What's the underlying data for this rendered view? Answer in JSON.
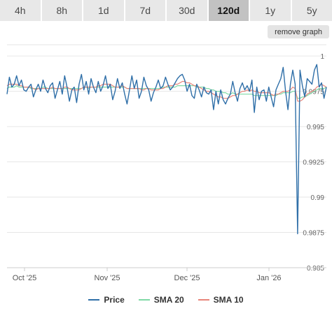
{
  "timeframes": [
    {
      "label": "4h",
      "active": false
    },
    {
      "label": "8h",
      "active": false
    },
    {
      "label": "1d",
      "active": false
    },
    {
      "label": "7d",
      "active": false
    },
    {
      "label": "30d",
      "active": false
    },
    {
      "label": "120d",
      "active": true
    },
    {
      "label": "1y",
      "active": false
    },
    {
      "label": "5y",
      "active": false
    }
  ],
  "remove_graph_label": "remove graph",
  "colors": {
    "price": "#2f6fa8",
    "sma20": "#7fd9a6",
    "sma10": "#e8857a"
  },
  "chart_data": {
    "type": "line",
    "x_ticks": [
      "Oct '25",
      "Nov '25",
      "Dec '25",
      "Jan '26"
    ],
    "y_ticks": [
      "0.985",
      "0.9875",
      "0.99",
      "0.9925",
      "0.995",
      "0.9975",
      "1"
    ],
    "ylim": [
      0.985,
      1.0008
    ],
    "grid": true,
    "legend_position": "bottom",
    "series": [
      {
        "name": "Price",
        "color": "#2f6fa8",
        "values": [
          0.9973,
          0.9985,
          0.9978,
          0.998,
          0.9986,
          0.9979,
          0.9983,
          0.9976,
          0.9975,
          0.9978,
          0.998,
          0.9971,
          0.9976,
          0.998,
          0.9975,
          0.9983,
          0.9977,
          0.9974,
          0.9979,
          0.9981,
          0.997,
          0.9976,
          0.9982,
          0.9973,
          0.9986,
          0.9978,
          0.9968,
          0.9976,
          0.9978,
          0.9967,
          0.998,
          0.9987,
          0.9976,
          0.9982,
          0.9973,
          0.9984,
          0.9978,
          0.9974,
          0.9982,
          0.9975,
          0.9979,
          0.9986,
          0.9977,
          0.998,
          0.9969,
          0.9975,
          0.9984,
          0.9977,
          0.9981,
          0.9973,
          0.9966,
          0.9976,
          0.9986,
          0.9977,
          0.9983,
          0.997,
          0.9975,
          0.9985,
          0.9979,
          0.9976,
          0.9968,
          0.9974,
          0.9978,
          0.9983,
          0.9977,
          0.9979,
          0.9985,
          0.998,
          0.9976,
          0.9978,
          0.9981,
          0.9984,
          0.9986,
          0.9987,
          0.9983,
          0.9975,
          0.998,
          0.9972,
          0.997,
          0.998,
          0.9976,
          0.9971,
          0.9978,
          0.9974,
          0.9973,
          0.9976,
          0.9962,
          0.9975,
          0.9966,
          0.9976,
          0.9969,
          0.9966,
          0.997,
          0.9973,
          0.9982,
          0.9974,
          0.9968,
          0.9977,
          0.9981,
          0.9976,
          0.9979,
          0.9975,
          0.9983,
          0.996,
          0.9978,
          0.9969,
          0.9975,
          0.9976,
          0.9968,
          0.9978,
          0.9971,
          0.9964,
          0.9976,
          0.998,
          0.9984,
          0.9992,
          0.9975,
          0.9962,
          0.998,
          0.999,
          0.998,
          0.9874,
          0.999,
          0.9979,
          0.9971,
          0.9984,
          0.9982,
          0.998,
          0.999,
          0.9994,
          0.9978,
          0.9981,
          0.997,
          0.9978
        ]
      },
      {
        "name": "SMA 20",
        "color": "#7fd9a6",
        "values": [
          0.9977,
          0.9978,
          0.9978,
          0.9978,
          0.9979,
          0.9978,
          0.9978,
          0.9978,
          0.9978,
          0.9978,
          0.9977,
          0.9977,
          0.9977,
          0.9977,
          0.9977,
          0.9978,
          0.9978,
          0.9977,
          0.9977,
          0.9977,
          0.9977,
          0.9977,
          0.9977,
          0.9977,
          0.9977,
          0.9977,
          0.9977,
          0.9977,
          0.9977,
          0.9977,
          0.9977,
          0.9977,
          0.9978,
          0.9978,
          0.9977,
          0.9978,
          0.9978,
          0.9978,
          0.9978,
          0.9978,
          0.9978,
          0.9978,
          0.9978,
          0.9978,
          0.9978,
          0.9978,
          0.9978,
          0.9978,
          0.9978,
          0.9978,
          0.9977,
          0.9977,
          0.9977,
          0.9977,
          0.9977,
          0.9977,
          0.9977,
          0.9977,
          0.9977,
          0.9977,
          0.9977,
          0.9977,
          0.9977,
          0.9977,
          0.9977,
          0.9978,
          0.9978,
          0.9978,
          0.9978,
          0.9978,
          0.9978,
          0.9979,
          0.9979,
          0.9979,
          0.9979,
          0.9979,
          0.9979,
          0.9979,
          0.9979,
          0.9978,
          0.9978,
          0.9978,
          0.9978,
          0.9977,
          0.9977,
          0.9976,
          0.9976,
          0.9975,
          0.9975,
          0.9975,
          0.9974,
          0.9974,
          0.9973,
          0.9973,
          0.9974,
          0.9973,
          0.9973,
          0.9973,
          0.9973,
          0.9973,
          0.9973,
          0.9973,
          0.9973,
          0.9972,
          0.9972,
          0.9972,
          0.9972,
          0.9972,
          0.9972,
          0.9972,
          0.9972,
          0.9972,
          0.9972,
          0.9973,
          0.9973,
          0.9974,
          0.9974,
          0.9974,
          0.9974,
          0.9975,
          0.9975,
          0.997,
          0.997,
          0.9971,
          0.9971,
          0.9972,
          0.9973,
          0.9974,
          0.9975,
          0.9976,
          0.9977,
          0.9977,
          0.9977,
          0.9978
        ]
      },
      {
        "name": "SMA 10",
        "color": "#e8857a",
        "values": [
          0.9979,
          0.998,
          0.998,
          0.998,
          0.998,
          0.9979,
          0.9979,
          0.9978,
          0.9978,
          0.9978,
          0.9978,
          0.9977,
          0.9976,
          0.9977,
          0.9977,
          0.9977,
          0.9977,
          0.9977,
          0.9977,
          0.9978,
          0.9977,
          0.9977,
          0.9977,
          0.9977,
          0.9978,
          0.9978,
          0.9977,
          0.9976,
          0.9976,
          0.9976,
          0.9976,
          0.9977,
          0.9978,
          0.9978,
          0.9978,
          0.9978,
          0.9978,
          0.9978,
          0.9979,
          0.9979,
          0.998,
          0.998,
          0.998,
          0.998,
          0.9979,
          0.9978,
          0.9978,
          0.9978,
          0.9979,
          0.9978,
          0.9977,
          0.9977,
          0.9977,
          0.9977,
          0.9977,
          0.9977,
          0.9976,
          0.9976,
          0.9977,
          0.9977,
          0.9976,
          0.9976,
          0.9976,
          0.9976,
          0.9977,
          0.9977,
          0.9978,
          0.9979,
          0.9979,
          0.9979,
          0.998,
          0.998,
          0.9981,
          0.9982,
          0.9982,
          0.9981,
          0.9981,
          0.998,
          0.9979,
          0.9979,
          0.9978,
          0.9977,
          0.9976,
          0.9975,
          0.9975,
          0.9974,
          0.9973,
          0.9972,
          0.9971,
          0.9971,
          0.997,
          0.997,
          0.997,
          0.9971,
          0.9972,
          0.9972,
          0.9973,
          0.9974,
          0.9975,
          0.9975,
          0.9976,
          0.9975,
          0.9976,
          0.9975,
          0.9975,
          0.9974,
          0.9974,
          0.9974,
          0.9974,
          0.9974,
          0.9973,
          0.9972,
          0.9973,
          0.9973,
          0.9974,
          0.9975,
          0.9975,
          0.9975,
          0.9976,
          0.9978,
          0.9977,
          0.9968,
          0.9968,
          0.9969,
          0.9971,
          0.9973,
          0.9974,
          0.9975,
          0.9976,
          0.9978,
          0.9979,
          0.998,
          0.9979,
          0.9978
        ]
      }
    ]
  }
}
